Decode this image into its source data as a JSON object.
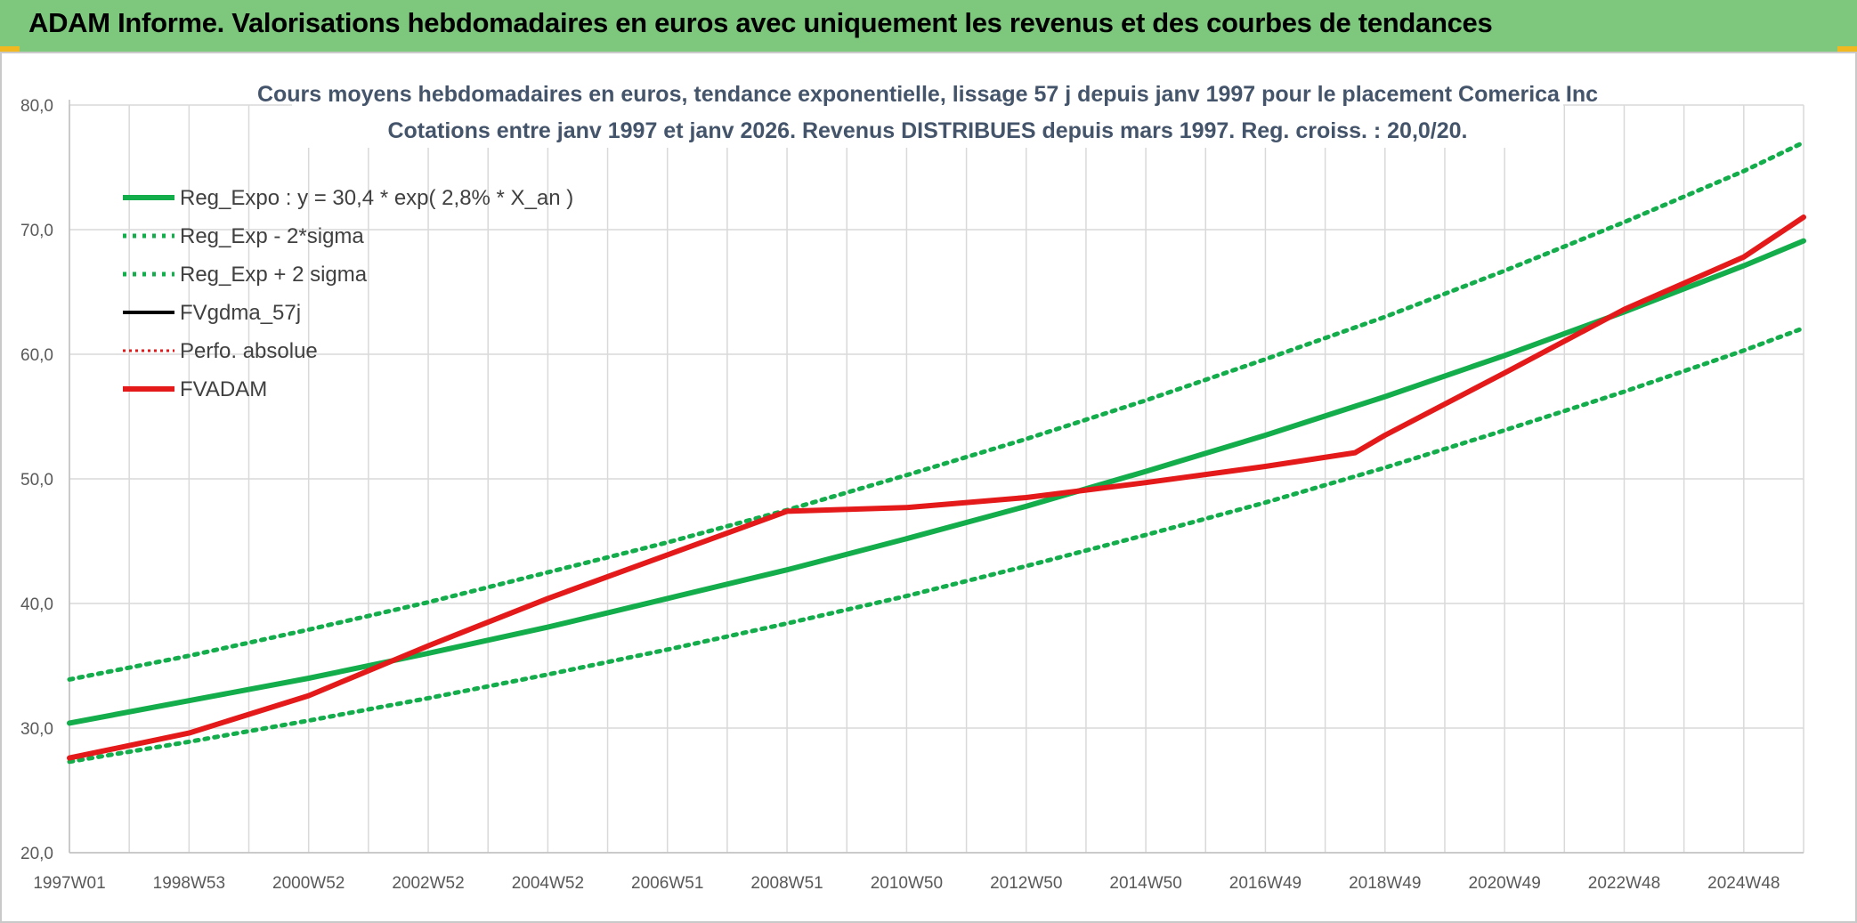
{
  "header": {
    "title": "ADAM Informe. Valorisations hebdomadaires en euros avec uniquement les revenus et des courbes de tendances"
  },
  "colors": {
    "banner": "#7ec87e",
    "regression": "#13ad4c",
    "sigma": "#13ad4c",
    "fvadam": "#e41a1a",
    "fvgdma": "#000000",
    "perfo": "#e41a1a",
    "grid": "#d9d9d9"
  },
  "chart_data": {
    "type": "line",
    "title": "Cours moyens hebdomadaires en euros, tendance exponentielle, lissage 57 j depuis janv 1997 pour le placement Comerica Inc",
    "subtitle": "Cotations entre janv 1997 et janv 2026. Revenus DISTRIBUES depuis mars 1997. Reg. croiss. : 20,0/20.",
    "xlabel": "",
    "ylabel": "",
    "ylim": [
      20,
      80
    ],
    "yticks": [
      "20,0",
      "30,0",
      "40,0",
      "50,0",
      "60,0",
      "70,0",
      "80,0"
    ],
    "xlim": [
      1997.0,
      2026.0
    ],
    "xticks": [
      {
        "x": 1997.0,
        "label": "1997W01"
      },
      {
        "x": 1999.0,
        "label": "1998W53"
      },
      {
        "x": 2001.0,
        "label": "2000W52"
      },
      {
        "x": 2003.0,
        "label": "2002W52"
      },
      {
        "x": 2005.0,
        "label": "2004W52"
      },
      {
        "x": 2007.0,
        "label": "2006W51"
      },
      {
        "x": 2009.0,
        "label": "2008W51"
      },
      {
        "x": 2011.0,
        "label": "2010W50"
      },
      {
        "x": 2013.0,
        "label": "2012W50"
      },
      {
        "x": 2015.0,
        "label": "2014W50"
      },
      {
        "x": 2017.0,
        "label": "2016W49"
      },
      {
        "x": 2019.0,
        "label": "2018W49"
      },
      {
        "x": 2021.0,
        "label": "2020W49"
      },
      {
        "x": 2023.0,
        "label": "2022W48"
      },
      {
        "x": 2025.0,
        "label": "2024W48"
      }
    ],
    "grid": true,
    "legend_position": "top-left",
    "series": [
      {
        "name": "Reg_Expo : y = 30,4 * exp( 2,8% *  X_an )",
        "style": "solid",
        "x": [
          1997,
          1999,
          2001,
          2003,
          2005,
          2007,
          2009,
          2011,
          2013,
          2015,
          2017,
          2019,
          2021,
          2023,
          2025,
          2026
        ],
        "values": [
          30.4,
          32.2,
          34.0,
          36.0,
          38.1,
          40.4,
          42.7,
          45.2,
          47.8,
          50.6,
          53.5,
          56.6,
          59.9,
          63.4,
          67.1,
          69.1
        ]
      },
      {
        "name": "Reg_Exp - 2*sigma",
        "style": "dotted",
        "x": [
          1997,
          1999,
          2001,
          2003,
          2005,
          2007,
          2009,
          2011,
          2013,
          2015,
          2017,
          2019,
          2021,
          2023,
          2025,
          2026
        ],
        "values": [
          27.3,
          28.9,
          30.6,
          32.4,
          34.3,
          36.3,
          38.4,
          40.6,
          43.0,
          45.5,
          48.1,
          50.9,
          53.9,
          57.0,
          60.3,
          62.1
        ]
      },
      {
        "name": "Reg_Exp + 2 sigma",
        "style": "dotted",
        "x": [
          1997,
          1999,
          2001,
          2003,
          2005,
          2007,
          2009,
          2011,
          2013,
          2015,
          2017,
          2019,
          2021,
          2023,
          2025,
          2026
        ],
        "values": [
          33.9,
          35.8,
          37.9,
          40.1,
          42.5,
          44.9,
          47.5,
          50.3,
          53.2,
          56.3,
          59.6,
          63.0,
          66.7,
          70.6,
          74.7,
          77.0
        ]
      },
      {
        "name": "FVgdma_57j",
        "style": "solid",
        "x": [],
        "values": []
      },
      {
        "name": "Perfo. absolue",
        "style": "dotted",
        "x": [],
        "values": []
      },
      {
        "name": "FVADAM",
        "style": "solid",
        "x": [
          1997,
          1999,
          2001,
          2003,
          2005,
          2007,
          2009,
          2011,
          2013,
          2014,
          2015,
          2017,
          2018.5,
          2019,
          2021,
          2023,
          2025,
          2026
        ],
        "values": [
          27.6,
          29.6,
          32.6,
          36.6,
          40.4,
          43.9,
          47.4,
          47.7,
          48.5,
          49.1,
          49.7,
          51.0,
          52.1,
          53.5,
          58.5,
          63.6,
          67.8,
          71.0
        ]
      }
    ]
  }
}
